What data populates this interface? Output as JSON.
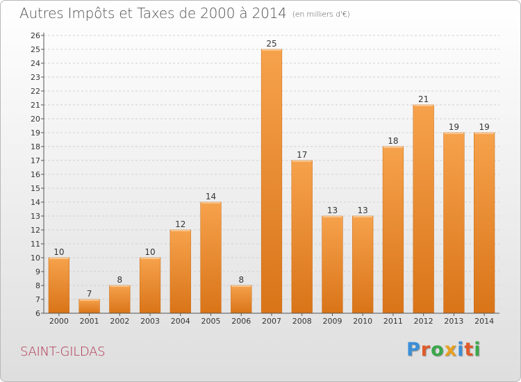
{
  "header": {
    "title": "Autres Impôts et Taxes de 2000 à 2014",
    "subtitle": "(en milliers d'€)"
  },
  "footer": {
    "commune": "SAINT-GILDAS",
    "logo_letters": [
      {
        "char": "P",
        "color": "#3a8fd8"
      },
      {
        "char": "r",
        "color": "#e05a2a"
      },
      {
        "char": "o",
        "color": "#3aa84a"
      },
      {
        "char": "x",
        "color": "#e8a020"
      },
      {
        "char": "i",
        "color": "#3a8fd8"
      },
      {
        "char": "t",
        "color": "#e05a2a"
      },
      {
        "char": "i",
        "color": "#3aa84a"
      }
    ]
  },
  "colors": {
    "bar_light": "#f6a24c",
    "bar_dark": "#d97418",
    "grid": "#d0d0d0"
  },
  "chart_data": {
    "type": "bar",
    "title": "Autres Impôts et Taxes de 2000 à 2014",
    "subtitle": "(en milliers d'€)",
    "xlabel": "",
    "ylabel": "",
    "categories": [
      "2000",
      "2001",
      "2002",
      "2003",
      "2004",
      "2005",
      "2006",
      "2007",
      "2008",
      "2009",
      "2010",
      "2011",
      "2012",
      "2013",
      "2014"
    ],
    "values": [
      10,
      7,
      8,
      10,
      12,
      14,
      8,
      25,
      17,
      13,
      13,
      18,
      21,
      19,
      19
    ],
    "data_labels": [
      "10",
      "7",
      "8",
      "10",
      "12",
      "14",
      "8",
      "25",
      "17",
      "13",
      "13",
      "18",
      "21",
      "19",
      "19"
    ],
    "ylim": [
      6,
      26
    ],
    "yticks": [
      6,
      7,
      8,
      9,
      10,
      11,
      12,
      13,
      14,
      15,
      16,
      17,
      18,
      19,
      20,
      21,
      22,
      23,
      24,
      25,
      26
    ],
    "grid": true
  }
}
